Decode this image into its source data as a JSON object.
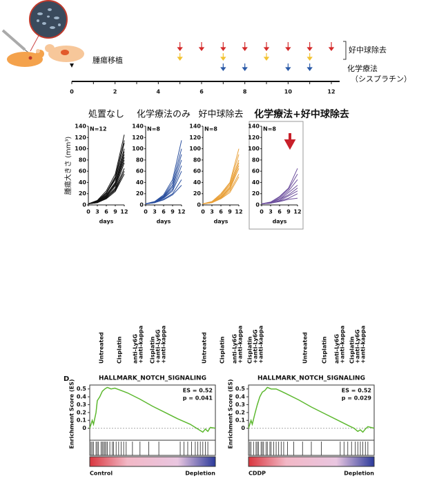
{
  "schedule": {
    "xlim": [
      0,
      12
    ],
    "xticks": [
      0,
      2,
      4,
      6,
      8,
      10,
      12
    ],
    "minor_xticks": [
      1,
      3,
      5,
      7,
      9,
      11
    ],
    "transplant_day": 0,
    "transplant_label": "腫瘍移植",
    "arrow_rows": [
      {
        "color": "#d42a2a",
        "days": [
          5,
          6,
          7,
          8,
          9,
          10,
          11,
          12
        ]
      },
      {
        "color": "#f2c230",
        "days": [
          5,
          7,
          9,
          11
        ]
      },
      {
        "color": "#2a5aa8",
        "days": [
          7,
          8,
          10,
          11
        ]
      }
    ],
    "depletion_label": "好中球除去",
    "chemo_label": [
      "化学療法",
      "（シスプラチン）"
    ]
  },
  "chart_data": [
    {
      "type": "line",
      "title": "処置なし",
      "annotation": "N=12",
      "color": "#111111",
      "ylabel": "腫瘍大きさ (mm³)",
      "xlabel": "days",
      "x": [
        0,
        3,
        6,
        9,
        12
      ],
      "xlim": [
        0,
        12
      ],
      "xticks": [
        0,
        3,
        6,
        9,
        12
      ],
      "ylim": [
        0,
        140
      ],
      "yticks": [
        0,
        20,
        40,
        60,
        80,
        100,
        120,
        140
      ],
      "series": [
        {
          "values": [
            2,
            8,
            25,
            55,
            125
          ]
        },
        {
          "values": [
            2,
            7,
            22,
            50,
            115
          ]
        },
        {
          "values": [
            2,
            6,
            20,
            48,
            110
          ]
        },
        {
          "values": [
            2,
            7,
            21,
            45,
            100
          ]
        },
        {
          "values": [
            2,
            6,
            18,
            40,
            95
          ]
        },
        {
          "values": [
            2,
            5,
            16,
            38,
            90
          ]
        },
        {
          "values": [
            2,
            6,
            17,
            36,
            85
          ]
        },
        {
          "values": [
            2,
            5,
            15,
            34,
            80
          ]
        },
        {
          "values": [
            2,
            5,
            14,
            30,
            75
          ]
        },
        {
          "values": [
            2,
            4,
            12,
            28,
            65
          ]
        },
        {
          "values": [
            2,
            4,
            13,
            26,
            60
          ]
        },
        {
          "values": [
            2,
            4,
            11,
            24,
            55
          ]
        }
      ]
    },
    {
      "type": "line",
      "title": "化学療法のみ",
      "annotation": "N=8",
      "color": "#2a4f9e",
      "xlabel": "days",
      "x": [
        0,
        3,
        6,
        9,
        12
      ],
      "xlim": [
        0,
        12
      ],
      "xticks": [
        0,
        3,
        6,
        9,
        12
      ],
      "ylim": [
        0,
        140
      ],
      "yticks": [
        0,
        20,
        40,
        60,
        80,
        100,
        120,
        140
      ],
      "series": [
        {
          "values": [
            2,
            6,
            18,
            45,
            115
          ]
        },
        {
          "values": [
            2,
            6,
            16,
            40,
            100
          ]
        },
        {
          "values": [
            2,
            5,
            15,
            35,
            90
          ]
        },
        {
          "values": [
            2,
            5,
            14,
            32,
            80
          ]
        },
        {
          "values": [
            2,
            5,
            13,
            28,
            70
          ]
        },
        {
          "values": [
            2,
            4,
            12,
            25,
            60
          ]
        },
        {
          "values": [
            2,
            4,
            10,
            20,
            45
          ]
        },
        {
          "values": [
            2,
            4,
            9,
            18,
            35
          ]
        }
      ]
    },
    {
      "type": "line",
      "title": "好中球除去",
      "annotation": "N=8",
      "color": "#e9a13a",
      "xlabel": "days",
      "x": [
        0,
        3,
        6,
        9,
        12
      ],
      "xlim": [
        0,
        12
      ],
      "xticks": [
        0,
        3,
        6,
        9,
        12
      ],
      "ylim": [
        0,
        140
      ],
      "yticks": [
        0,
        20,
        40,
        60,
        80,
        100,
        120,
        140
      ],
      "series": [
        {
          "values": [
            2,
            6,
            20,
            40,
            100
          ]
        },
        {
          "values": [
            2,
            6,
            18,
            38,
            90
          ]
        },
        {
          "values": [
            2,
            5,
            17,
            35,
            80
          ]
        },
        {
          "values": [
            2,
            5,
            15,
            32,
            75
          ]
        },
        {
          "values": [
            2,
            5,
            14,
            30,
            70
          ]
        },
        {
          "values": [
            2,
            4,
            13,
            28,
            65
          ]
        },
        {
          "values": [
            2,
            4,
            12,
            25,
            55
          ]
        },
        {
          "values": [
            2,
            4,
            11,
            22,
            50
          ]
        }
      ]
    },
    {
      "type": "line",
      "title": "化学療法+好中球除去",
      "annotation": "N=8",
      "color": "#6b4d9c",
      "xlabel": "days",
      "bold_title": true,
      "highlight": true,
      "x": [
        0,
        3,
        6,
        9,
        12
      ],
      "xlim": [
        0,
        12
      ],
      "xticks": [
        0,
        3,
        6,
        9,
        12
      ],
      "ylim": [
        0,
        140
      ],
      "yticks": [
        0,
        20,
        40,
        60,
        80,
        100,
        120,
        140
      ],
      "series": [
        {
          "values": [
            2,
            5,
            15,
            30,
            65
          ]
        },
        {
          "values": [
            2,
            5,
            14,
            28,
            55
          ]
        },
        {
          "values": [
            2,
            4,
            12,
            25,
            45
          ]
        },
        {
          "values": [
            2,
            4,
            10,
            22,
            35
          ]
        },
        {
          "values": [
            2,
            4,
            10,
            18,
            30
          ]
        },
        {
          "values": [
            2,
            3,
            8,
            16,
            25
          ]
        },
        {
          "values": [
            2,
            3,
            7,
            12,
            20
          ]
        },
        {
          "values": [
            2,
            3,
            6,
            10,
            12
          ]
        }
      ]
    },
    {
      "type": "gsea",
      "title": "HALLMARK_NOTCH_SIGNALING",
      "ylabel": "Enrichment Score (ES)",
      "annotations": [
        "ES = 0.52",
        "p = 0.041"
      ],
      "color": "#5cb82e",
      "left_label": "Control",
      "right_label": "Depletion",
      "xlim": [
        0,
        100
      ],
      "ylim": [
        -0.1,
        0.55
      ],
      "yticks": [
        0,
        0.1,
        0.2,
        0.3,
        0.4,
        0.5
      ],
      "x": [
        0,
        2,
        3,
        5,
        6,
        8,
        10,
        12,
        14,
        17,
        20,
        25,
        30,
        40,
        50,
        60,
        70,
        80,
        85,
        88,
        90,
        92,
        94,
        96,
        100
      ],
      "values": [
        0,
        0.1,
        0.05,
        0.2,
        0.35,
        0.4,
        0.47,
        0.5,
        0.52,
        0.5,
        0.51,
        0.48,
        0.45,
        0.37,
        0.28,
        0.2,
        0.12,
        0.05,
        0.0,
        -0.03,
        -0.05,
        -0.01,
        -0.04,
        0.01,
        0
      ],
      "hits": [
        1,
        2,
        3,
        5,
        6,
        7,
        9,
        10,
        11,
        12,
        13,
        14,
        16,
        18,
        19,
        21,
        23,
        25,
        27,
        29,
        34,
        40,
        47,
        55,
        72,
        75,
        78,
        81,
        84,
        86,
        88,
        90,
        92,
        94
      ]
    },
    {
      "type": "gsea",
      "title": "HALLMARK_NOTCH_SIGNALING",
      "ylabel": "Enrichment Score (ES)",
      "annotations": [
        "ES = 0.52",
        "p = 0.029"
      ],
      "color": "#5cb82e",
      "left_label": "CDDP",
      "right_label": "Depletion",
      "xlim": [
        0,
        100
      ],
      "ylim": [
        -0.1,
        0.55
      ],
      "yticks": [
        0,
        0.1,
        0.2,
        0.3,
        0.4,
        0.5
      ],
      "x": [
        0,
        2,
        3,
        5,
        7,
        9,
        11,
        13,
        15,
        18,
        22,
        26,
        30,
        40,
        50,
        60,
        70,
        80,
        84,
        87,
        89,
        91,
        93,
        95,
        100
      ],
      "values": [
        0,
        0.1,
        0.05,
        0.18,
        0.3,
        0.4,
        0.46,
        0.48,
        0.52,
        0.5,
        0.5,
        0.47,
        0.44,
        0.36,
        0.27,
        0.19,
        0.11,
        0.03,
        0.0,
        -0.04,
        -0.02,
        -0.05,
        -0.01,
        0.02,
        0
      ],
      "hits": [
        1,
        2,
        4,
        6,
        7,
        8,
        10,
        11,
        12,
        14,
        15,
        17,
        18,
        20,
        22,
        24,
        26,
        28,
        31,
        36,
        43,
        50,
        58,
        73,
        76,
        79,
        82,
        85,
        87,
        89,
        91,
        93,
        95
      ]
    }
  ],
  "sample_labels": [
    [
      [
        "Untreated"
      ],
      [
        "Cisplatin"
      ],
      [
        "anti-Ly6G",
        "+anti-kappa"
      ],
      [
        "Cisplatin",
        "+anti-Ly6G",
        "+anti-kappa"
      ]
    ],
    [
      [
        "Untreated"
      ],
      [
        "Cisplatin"
      ],
      [
        "anti-Ly6G",
        "+anti-kappa"
      ],
      [
        "Cisplatin",
        "+anti-Ly6G",
        "+anti-kappa"
      ]
    ],
    [
      [
        "Untreated"
      ],
      [
        "Cisplatin"
      ],
      [
        "anti-Ly6G",
        "+anti-kappa"
      ],
      [
        "Cisplatin",
        "+anti-Ly6G",
        "+anti-kappa"
      ]
    ]
  ],
  "panel_label": "D"
}
